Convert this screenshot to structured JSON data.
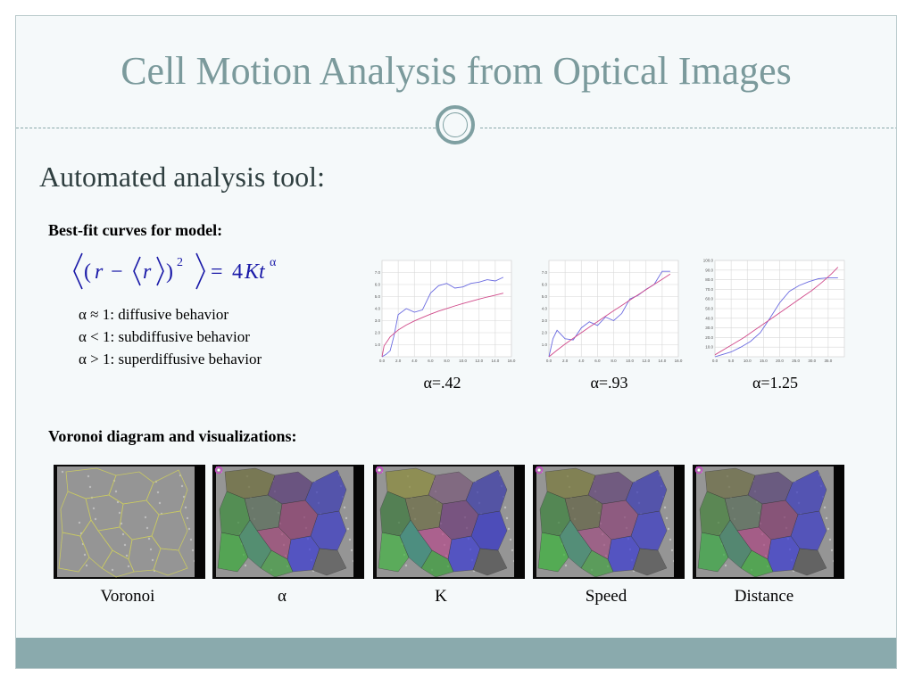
{
  "slide": {
    "title": "Cell Motion Analysis from Optical Images",
    "subtitle": "Automated analysis tool:",
    "bestfit_heading": "Best-fit curves for model:",
    "voronoi_heading": "Voronoi diagram and visualizations:",
    "behaviors": [
      "α ≈ 1: diffusive behavior",
      "α < 1: subdiffusive behavior",
      "α > 1: superdiffusive behavior"
    ],
    "visualization_labels": [
      "Voronoi",
      "α",
      "K",
      "Speed",
      "Distance"
    ]
  },
  "colors": {
    "title": "#7b9a9c",
    "accent_bar": "#8aaaad",
    "measured_line": "#6a6ae0",
    "fit_line": "#d04a8a",
    "formula": "#1a1aa8"
  },
  "chart_data": [
    {
      "type": "line",
      "caption": "α=.42",
      "xlim": [
        0,
        16
      ],
      "ylim": [
        0,
        8
      ],
      "x_ticks": [
        "0.0",
        "2.0",
        "4.0",
        "6.0",
        "8.0",
        "10.0",
        "12.0",
        "14.0",
        "16.0"
      ],
      "y_ticks": [
        "1.0",
        "2.0",
        "3.0",
        "4.0",
        "5.0",
        "6.0",
        "7.0"
      ],
      "grid": true,
      "series": [
        {
          "x": [
            0,
            0.5,
            1,
            1.5,
            2,
            3,
            4,
            5,
            6,
            7,
            8,
            9,
            10,
            11,
            12,
            13,
            14,
            15
          ],
          "values": [
            0,
            0.2,
            0.5,
            1.8,
            3.5,
            4.0,
            3.7,
            3.9,
            5.3,
            5.9,
            6.1,
            5.7,
            5.8,
            6.1,
            6.2,
            6.4,
            6.3,
            6.6
          ]
        },
        {
          "x": [
            0,
            0.25,
            1,
            2,
            3,
            4,
            5,
            6,
            7,
            8,
            9,
            10,
            11,
            12,
            13,
            14,
            15
          ],
          "values": [
            0,
            0.9,
            1.65,
            2.22,
            2.64,
            2.98,
            3.27,
            3.54,
            3.79,
            4.01,
            4.22,
            4.42,
            4.61,
            4.79,
            4.96,
            5.12,
            5.28
          ]
        }
      ]
    },
    {
      "type": "line",
      "caption": "α=.93",
      "xlim": [
        0,
        16
      ],
      "ylim": [
        0,
        8
      ],
      "x_ticks": [
        "0.0",
        "2.0",
        "4.0",
        "6.0",
        "8.0",
        "10.0",
        "12.0",
        "14.0",
        "16.0"
      ],
      "y_ticks": [
        "1.0",
        "2.0",
        "3.0",
        "4.0",
        "5.0",
        "6.0",
        "7.0"
      ],
      "grid": true,
      "series": [
        {
          "x": [
            0,
            0.5,
            1,
            2,
            3,
            4,
            5,
            6,
            7,
            8,
            9,
            10,
            11,
            12,
            13,
            14,
            15
          ],
          "values": [
            0,
            1.5,
            2.2,
            1.5,
            1.4,
            2.4,
            2.9,
            2.6,
            3.3,
            3.0,
            3.6,
            4.8,
            5.1,
            5.6,
            6.0,
            7.1,
            7.1
          ]
        },
        {
          "x": [
            0,
            1,
            2,
            3,
            4,
            5,
            6,
            7,
            8,
            9,
            10,
            11,
            12,
            13,
            14,
            15
          ],
          "values": [
            0,
            0.55,
            1.05,
            1.53,
            2.0,
            2.46,
            2.92,
            3.37,
            3.82,
            4.26,
            4.7,
            5.14,
            5.58,
            6.01,
            6.44,
            6.87
          ]
        }
      ]
    },
    {
      "type": "line",
      "caption": "α=1.25",
      "xlim": [
        0,
        40
      ],
      "ylim": [
        0,
        100
      ],
      "x_ticks": [
        "0.0",
        "5.0",
        "10.0",
        "15.0",
        "20.0",
        "25.0",
        "30.0",
        "35.0"
      ],
      "y_ticks": [
        "10.0",
        "20.0",
        "30.0",
        "40.0",
        "50.0",
        "60.0",
        "70.0",
        "80.0",
        "90.0",
        "100.0"
      ],
      "grid": true,
      "series": [
        {
          "x": [
            0,
            2,
            5,
            8,
            11,
            14,
            17,
            20,
            23,
            26,
            29,
            32,
            35,
            38
          ],
          "values": [
            0,
            2,
            5,
            10,
            16,
            25,
            40,
            56,
            68,
            74,
            78,
            81,
            82,
            82
          ]
        },
        {
          "x": [
            0,
            3,
            6,
            9,
            12,
            15,
            18,
            21,
            24,
            27,
            30,
            33,
            36,
            38
          ],
          "values": [
            2,
            8,
            14,
            20,
            27,
            34,
            41,
            48,
            55,
            62,
            69,
            77,
            86,
            93
          ]
        }
      ]
    }
  ]
}
